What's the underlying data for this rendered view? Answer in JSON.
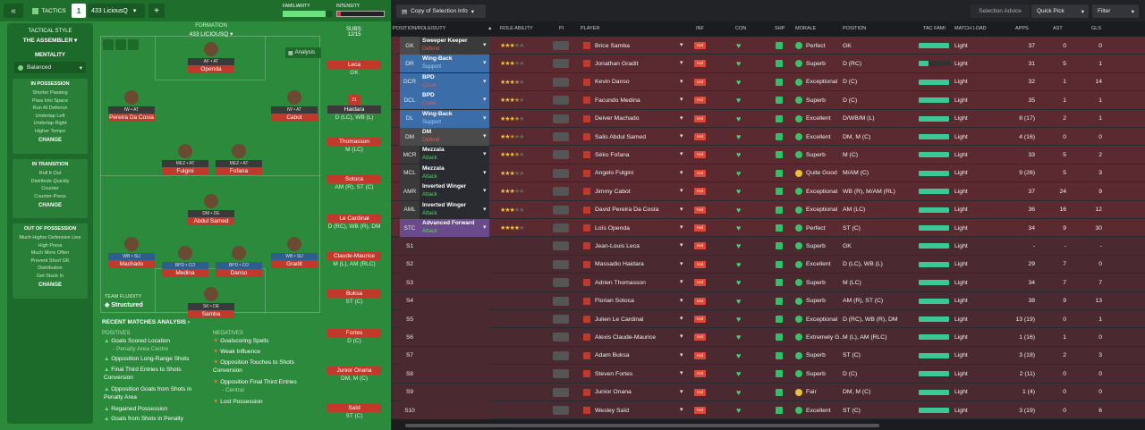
{
  "topbar": {
    "back": "«",
    "tactics_label": "TACTICS",
    "slot_number": "1",
    "tactic_name": "433 LiciousQ",
    "add": "+",
    "familiarity_label": "FAMILIARITY",
    "intensity_label": "INTENSITY"
  },
  "tactical_style": {
    "title": "TACTICAL STYLE",
    "style_name": "THE ASSEMBLER",
    "mentality_label": "MENTALITY",
    "mentality_value": "Balanced",
    "in_possession": {
      "title": "IN POSSESSION",
      "items": [
        "Shorter Passing",
        "Pass Into Space",
        "Run At Defence",
        "Underlap Left",
        "Underlap Right",
        "Higher Tempo"
      ],
      "change": "CHANGE"
    },
    "in_transition": {
      "title": "IN TRANSITION",
      "items": [
        "Roll It Out",
        "Distribute Quickly",
        "Counter",
        "Counter-Press"
      ],
      "change": "CHANGE"
    },
    "out_of_possession": {
      "title": "OUT OF POSSESSION",
      "items": [
        "Much Higher Defensive Line",
        "High Press",
        "Much More Often",
        "Prevent Short GK",
        "Distribution",
        "Get Stuck In"
      ],
      "change": "CHANGE"
    }
  },
  "formation": {
    "label": "FORMATION",
    "name": "433 LICIOUSQ",
    "analysis": "Analysis",
    "fluidity_label": "TEAM FLUIDITY",
    "fluidity_value": "Structured"
  },
  "pitch_players": [
    {
      "role": "AF • AT",
      "name": "Openda"
    },
    {
      "role": "IW • AT",
      "name": "Pereira Da Costa"
    },
    {
      "role": "IW • AT",
      "name": "Cabot"
    },
    {
      "role": "MEZ • AT",
      "name": "Fulgini"
    },
    {
      "role": "MEZ • AT",
      "name": "Fofana"
    },
    {
      "role": "DM • DE",
      "name": "Abdul Samed"
    },
    {
      "role": "WB • SU",
      "name": "Machado"
    },
    {
      "role": "BPD • CO",
      "name": "Medina"
    },
    {
      "role": "BPD • CO",
      "name": "Danso"
    },
    {
      "role": "WB • SU",
      "name": "Gradit"
    },
    {
      "role": "SK • DE",
      "name": "Samba"
    }
  ],
  "subs": {
    "label": "SUBS:",
    "count": "12/15",
    "players": [
      {
        "name": "Leca",
        "pos": "GK"
      },
      {
        "name": "Haidara",
        "pos": "D (LC), WB (L)",
        "number": "21"
      },
      {
        "name": "Thomasson",
        "pos": "M (LC)"
      },
      {
        "name": "Sotoca",
        "pos": "AM (R), ST (C)"
      },
      {
        "name": "Le Cardinal",
        "pos": "D (RC), WB (R), DM"
      },
      {
        "name": "Claude-Maurice",
        "pos": "M (L), AM (RLC)"
      },
      {
        "name": "Buksa",
        "pos": "ST (C)"
      },
      {
        "name": "Fortes",
        "pos": "D (C)"
      },
      {
        "name": "Junior Onana",
        "pos": "DM, M (C)"
      },
      {
        "name": "Saïd",
        "pos": "ST (C)"
      }
    ]
  },
  "recent": {
    "title": "RECENT MATCHES ANALYSIS ›",
    "positives_label": "POSITIVES",
    "negatives_label": "NEGATIVES",
    "positives": [
      {
        "text": "Goals Scored Location",
        "sub": "- Penalty Area Centre"
      },
      {
        "text": "Opposition Long-Range Shots",
        "sub": ""
      },
      {
        "text": "Final Third Entries to Shots Conversion",
        "sub": ""
      },
      {
        "text": "Opposition Goals from Shots in Penalty Area",
        "sub": ""
      },
      {
        "text": "Regained Possession",
        "sub": ""
      },
      {
        "text": "Goals from Shots in Penalty",
        "sub": ""
      }
    ],
    "negatives": [
      {
        "text": "Goalscoring Spells",
        "sub": ""
      },
      {
        "text": "Weak Influence",
        "sub": ""
      },
      {
        "text": "Opposition Touches to Shots Conversion",
        "sub": ""
      },
      {
        "text": "Opposition Final Third Entries",
        "sub": "- Central"
      },
      {
        "text": "Lost Possession",
        "sub": ""
      }
    ]
  },
  "right_toolbar": {
    "copy_label": "Copy of Selection Info",
    "selection_advice": "Selection Advice",
    "quick_pick": "Quick Pick",
    "filter": "Filter"
  },
  "columns": {
    "position": "POSITION/ROLE/DUTY",
    "role_ability": "ROLE ABILITY",
    "pi": "PI",
    "player": "PLAYER",
    "inf": "INF",
    "con": "CON",
    "shp": "SHP",
    "morale": "MORALE",
    "position2": "POSITION",
    "tac_fami": "TAC FAMI",
    "match_load": "MATCH LOAD",
    "apps": "APPS",
    "ast": "AST",
    "gls": "GLS"
  },
  "rows": [
    {
      "pos": "GK",
      "role": "Sweeper Keeper",
      "duty": "Defend",
      "stars": 3,
      "player": "Brice Samba",
      "morale": "Perfect",
      "position": "GK",
      "tac": 0.95,
      "load": "Light",
      "apps": "37",
      "ast": "0",
      "gls": "0",
      "poscolor": "#4a4a4a",
      "rolecolor": "#3a3a3a",
      "dutycolor": "#e05a5a",
      "moodcolor": "#35c46a",
      "bg": "#5a2a30"
    },
    {
      "pos": "DR",
      "role": "Wing-Back",
      "duty": "Support",
      "stars": 3,
      "player": "Jonathan Gradit",
      "morale": "Superb",
      "position": "D (RC)",
      "tac": 0.3,
      "load": "Light",
      "apps": "31",
      "ast": "5",
      "gls": "1",
      "poscolor": "#3b6ea8",
      "rolecolor": "#3b6ea8",
      "dutycolor": "#9fd0ff",
      "moodcolor": "#35c46a",
      "bg": "#5a2a30"
    },
    {
      "pos": "DCR",
      "role": "BPD",
      "duty": "Cover",
      "stars": 3.5,
      "player": "Kevin Danso",
      "morale": "Exceptional",
      "position": "D (C)",
      "tac": 0.95,
      "load": "Light",
      "apps": "32",
      "ast": "1",
      "gls": "14",
      "poscolor": "#3b6ea8",
      "rolecolor": "#3b6ea8",
      "dutycolor": "#e05a5a",
      "moodcolor": "#35c46a",
      "bg": "#5a2a30"
    },
    {
      "pos": "DCL",
      "role": "BPD",
      "duty": "Cover",
      "stars": 3.5,
      "player": "Facundo Medina",
      "morale": "Superb",
      "position": "D (C)",
      "tac": 0.95,
      "load": "Light",
      "apps": "35",
      "ast": "1",
      "gls": "1",
      "poscolor": "#3b6ea8",
      "rolecolor": "#3b6ea8",
      "dutycolor": "#e05a5a",
      "moodcolor": "#35c46a",
      "bg": "#5a2a30"
    },
    {
      "pos": "DL",
      "role": "Wing-Back",
      "duty": "Support",
      "stars": 3.5,
      "player": "Deiver Machado",
      "morale": "Excellent",
      "position": "D/WB/M (L)",
      "tac": 0.95,
      "load": "Light",
      "apps": "8 (17)",
      "ast": "2",
      "gls": "1",
      "poscolor": "#3b6ea8",
      "rolecolor": "#3b6ea8",
      "dutycolor": "#9fd0ff",
      "moodcolor": "#35c46a",
      "bg": "#5a2a30"
    },
    {
      "pos": "DM",
      "role": "DM",
      "duty": "Defend",
      "stars": 2.5,
      "player": "Salis Abdul Samed",
      "morale": "Excellent",
      "position": "DM, M (C)",
      "tac": 0.95,
      "load": "Light",
      "apps": "4 (16)",
      "ast": "0",
      "gls": "0",
      "poscolor": "#4a4a4a",
      "rolecolor": "#4a4a4a",
      "dutycolor": "#e05a5a",
      "moodcolor": "#35c46a",
      "bg": "#5a2a30"
    },
    {
      "pos": "MCR",
      "role": "Mezzala",
      "duty": "Attack",
      "stars": 3.5,
      "player": "Séko Fofana",
      "morale": "Superb",
      "position": "M (C)",
      "tac": 0.95,
      "load": "Light",
      "apps": "33",
      "ast": "5",
      "gls": "2",
      "poscolor": "#3a3a3a",
      "rolecolor": "#2a2b30",
      "dutycolor": "#5ad06a",
      "moodcolor": "#35c46a",
      "bg": "#5a2a30"
    },
    {
      "pos": "MCL",
      "role": "Mezzala",
      "duty": "Attack",
      "stars": 3,
      "player": "Angelo Fulgini",
      "morale": "Quite Good",
      "position": "M/AM (C)",
      "tac": 0.95,
      "load": "Light",
      "apps": "9 (26)",
      "ast": "5",
      "gls": "3",
      "poscolor": "#3a3a3a",
      "rolecolor": "#2a2b30",
      "dutycolor": "#5ad06a",
      "moodcolor": "#e8c13a",
      "bg": "#5a2a30"
    },
    {
      "pos": "AMR",
      "role": "Inverted Winger",
      "duty": "Attack",
      "stars": 3,
      "player": "Jimmy Cabot",
      "morale": "Exceptional",
      "position": "WB (R), M/AM (RL)",
      "tac": 0.95,
      "load": "Light",
      "apps": "37",
      "ast": "24",
      "gls": "9",
      "poscolor": "#3a3a3a",
      "rolecolor": "#2a2b30",
      "dutycolor": "#5ad06a",
      "moodcolor": "#35c46a",
      "bg": "#5a2a30"
    },
    {
      "pos": "AML",
      "role": "Inverted Winger",
      "duty": "Attack",
      "stars": 3,
      "player": "David Pereira Da Costa",
      "morale": "Exceptional",
      "position": "AM (LC)",
      "tac": 0.95,
      "load": "Light",
      "apps": "36",
      "ast": "16",
      "gls": "12",
      "poscolor": "#3a3a3a",
      "rolecolor": "#2a2b30",
      "dutycolor": "#5ad06a",
      "moodcolor": "#35c46a",
      "bg": "#5a2a30"
    },
    {
      "pos": "STC",
      "role": "Advanced Forward",
      "duty": "Attack",
      "stars": 4,
      "player": "Loïs Openda",
      "morale": "Perfect",
      "position": "ST (C)",
      "tac": 0.95,
      "load": "Light",
      "apps": "34",
      "ast": "9",
      "gls": "30",
      "poscolor": "#6a4a8a",
      "rolecolor": "#6a4a8a",
      "dutycolor": "#5ad06a",
      "moodcolor": "#35c46a",
      "bg": "#5a2a30"
    },
    {
      "pos": "S1",
      "role": "",
      "duty": "",
      "stars": 0,
      "player": "Jean-Louis Leca",
      "morale": "Superb",
      "position": "GK",
      "tac": 0.95,
      "load": "Light",
      "apps": "-",
      "ast": "-",
      "gls": "-",
      "poscolor": "#4a2a30",
      "rolecolor": "#4a2a30",
      "dutycolor": "#fff",
      "moodcolor": "#35c46a",
      "bg": "#4a2a30"
    },
    {
      "pos": "S2",
      "role": "",
      "duty": "",
      "stars": 0,
      "player": "Massadio Haidara",
      "morale": "Excellent",
      "position": "D (LC), WB (L)",
      "tac": 0.95,
      "load": "Light",
      "apps": "29",
      "ast": "7",
      "gls": "0",
      "poscolor": "#4a2a30",
      "rolecolor": "#4a2a30",
      "dutycolor": "#fff",
      "moodcolor": "#35c46a",
      "bg": "#4a2a30"
    },
    {
      "pos": "S3",
      "role": "",
      "duty": "",
      "stars": 0,
      "player": "Adrien Thomasson",
      "morale": "Superb",
      "position": "M (LC)",
      "tac": 0.95,
      "load": "Light",
      "apps": "34",
      "ast": "7",
      "gls": "7",
      "poscolor": "#4a2a30",
      "rolecolor": "#4a2a30",
      "dutycolor": "#fff",
      "moodcolor": "#35c46a",
      "bg": "#4a2a30"
    },
    {
      "pos": "S4",
      "role": "",
      "duty": "",
      "stars": 0,
      "player": "Florian Sotoca",
      "morale": "Superb",
      "position": "AM (R), ST (C)",
      "tac": 0.95,
      "load": "Light",
      "apps": "38",
      "ast": "9",
      "gls": "13",
      "poscolor": "#4a2a30",
      "rolecolor": "#4a2a30",
      "dutycolor": "#fff",
      "moodcolor": "#35c46a",
      "bg": "#4a2a30"
    },
    {
      "pos": "S5",
      "role": "",
      "duty": "",
      "stars": 0,
      "player": "Julien Le Cardinal",
      "morale": "Exceptional",
      "position": "D (RC), WB (R), DM",
      "tac": 0.95,
      "load": "Light",
      "apps": "13 (19)",
      "ast": "0",
      "gls": "1",
      "poscolor": "#4a2a30",
      "rolecolor": "#4a2a30",
      "dutycolor": "#fff",
      "moodcolor": "#35c46a",
      "bg": "#4a2a30"
    },
    {
      "pos": "S6",
      "role": "",
      "duty": "",
      "stars": 0,
      "player": "Alexis Claude-Maurice",
      "morale": "Extremely G...",
      "position": "M (L), AM (RLC)",
      "tac": 0.95,
      "load": "Light",
      "apps": "1 (16)",
      "ast": "1",
      "gls": "0",
      "poscolor": "#4a2a30",
      "rolecolor": "#4a2a30",
      "dutycolor": "#fff",
      "moodcolor": "#35c46a",
      "bg": "#4a2a30"
    },
    {
      "pos": "S7",
      "role": "",
      "duty": "",
      "stars": 0,
      "player": "Adam Buksa",
      "morale": "Superb",
      "position": "ST (C)",
      "tac": 0.95,
      "load": "Light",
      "apps": "3 (18)",
      "ast": "2",
      "gls": "3",
      "poscolor": "#4a2a30",
      "rolecolor": "#4a2a30",
      "dutycolor": "#fff",
      "moodcolor": "#35c46a",
      "bg": "#4a2a30"
    },
    {
      "pos": "S8",
      "role": "",
      "duty": "",
      "stars": 0,
      "player": "Steven Fortes",
      "morale": "Superb",
      "position": "D (C)",
      "tac": 0.95,
      "load": "Light",
      "apps": "2 (11)",
      "ast": "0",
      "gls": "0",
      "poscolor": "#4a2a30",
      "rolecolor": "#4a2a30",
      "dutycolor": "#fff",
      "moodcolor": "#35c46a",
      "bg": "#4a2a30"
    },
    {
      "pos": "S9",
      "role": "",
      "duty": "",
      "stars": 0,
      "player": "Junior Onana",
      "morale": "Fair",
      "position": "DM, M (C)",
      "tac": 0.95,
      "load": "Light",
      "apps": "1 (4)",
      "ast": "0",
      "gls": "0",
      "poscolor": "#4a2a30",
      "rolecolor": "#4a2a30",
      "dutycolor": "#fff",
      "moodcolor": "#e8c13a",
      "bg": "#4a2a30"
    },
    {
      "pos": "S10",
      "role": "",
      "duty": "",
      "stars": 0,
      "player": "Wesley Saïd",
      "morale": "Excellent",
      "position": "ST (C)",
      "tac": 0.95,
      "load": "Light",
      "apps": "3 (19)",
      "ast": "0",
      "gls": "6",
      "poscolor": "#4a2a30",
      "rolecolor": "#4a2a30",
      "dutycolor": "#fff",
      "moodcolor": "#35c46a",
      "bg": "#4a2a30"
    }
  ],
  "inf_label": "Hol"
}
